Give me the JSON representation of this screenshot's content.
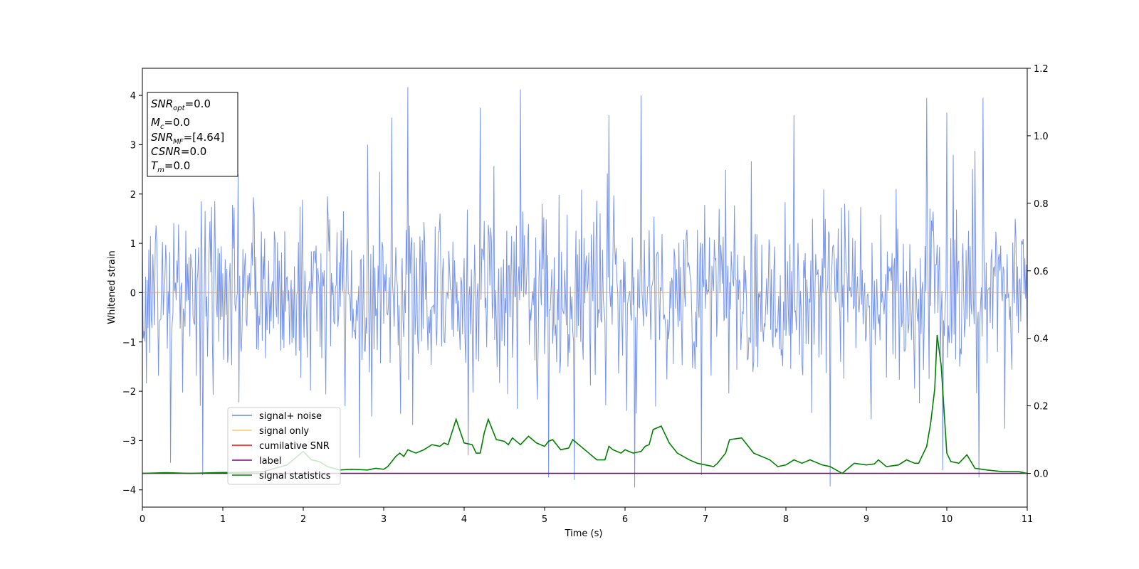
{
  "chart_data": {
    "type": "line",
    "xlabel": "Time (s)",
    "ylabel": "Whitened strain",
    "xlim": [
      0,
      11
    ],
    "ylim_left": [
      -4.35,
      4.55
    ],
    "ylim_right": [
      -0.1,
      1.2
    ],
    "x_ticks": [
      "0",
      "1",
      "2",
      "3",
      "4",
      "5",
      "6",
      "7",
      "8",
      "9",
      "10",
      "11"
    ],
    "y_ticks_left": [
      "−4",
      "−3",
      "−2",
      "−1",
      "0",
      "1",
      "2",
      "3",
      "4"
    ],
    "y_ticks_right": [
      "0.0",
      "0.2",
      "0.4",
      "0.6",
      "0.8",
      "1.0",
      "1.2"
    ],
    "info_box": {
      "snr_opt": {
        "name": "SNR",
        "sub": "opt",
        "value": "=0.0"
      },
      "mc": {
        "name": "M",
        "sub": "c",
        "value": "=0.0"
      },
      "snr_mf": {
        "name": "SNR",
        "sub": "MF",
        "value": "=[4.64]"
      },
      "csnr": {
        "name": "CSNR",
        "value": "=0.0"
      },
      "tm": {
        "name": "T",
        "sub": "m",
        "value": "=0.0"
      }
    },
    "colors": {
      "signal_noise": "#4169e1",
      "signal_only": "#ffa500",
      "cumulative_snr": "#ff0000",
      "label": "#800080",
      "signal_statistics": "#008000"
    },
    "series": [
      {
        "name": "signal+ noise",
        "axis": "left",
        "description_values": {
          "sample_rate_hz": 100,
          "typical_range": [
            -2.5,
            2.8
          ],
          "spike_maxima": [
            [
              3.3,
              4.17
            ],
            [
              4.7,
              4.12
            ],
            [
              6.2,
              4.0
            ],
            [
              10.45,
              3.95
            ],
            [
              3.1,
              3.55
            ],
            [
              4.2,
              3.75
            ],
            [
              5.8,
              3.6
            ],
            [
              6.95,
              3.9
            ],
            [
              9.75,
              3.95
            ],
            [
              8.1,
              3.6
            ],
            [
              10.0,
              3.65
            ]
          ],
          "spike_minima": [
            [
              6.12,
              -3.95
            ],
            [
              8.55,
              -3.93
            ],
            [
              5.37,
              -3.8
            ],
            [
              5.05,
              -3.75
            ],
            [
              4.05,
              -3.3
            ],
            [
              2.7,
              -3.35
            ],
            [
              0.35,
              -3.45
            ],
            [
              0.75,
              -3.7
            ],
            [
              6.95,
              -3.7
            ],
            [
              10.4,
              -3.75
            ],
            [
              9.95,
              -3.6
            ]
          ]
        }
      },
      {
        "name": "signal only",
        "axis": "left",
        "x": [
          0,
          11
        ],
        "y": [
          0,
          0
        ]
      },
      {
        "name": "cumilative SNR",
        "axis": "right",
        "x": [],
        "y": []
      },
      {
        "name": "label",
        "axis": "right",
        "x": [
          0,
          11
        ],
        "y": [
          0,
          0
        ]
      },
      {
        "name": "signal statistics",
        "axis": "right",
        "x": [
          0,
          0.3,
          0.6,
          0.9,
          1.2,
          1.5,
          1.8,
          2.0,
          2.1,
          2.2,
          2.3,
          2.45,
          2.6,
          2.8,
          2.9,
          3.0,
          3.05,
          3.15,
          3.2,
          3.25,
          3.3,
          3.4,
          3.5,
          3.6,
          3.7,
          3.75,
          3.8,
          3.9,
          4.0,
          4.1,
          4.15,
          4.2,
          4.25,
          4.3,
          4.4,
          4.5,
          4.55,
          4.6,
          4.7,
          4.8,
          4.9,
          5.0,
          5.05,
          5.1,
          5.2,
          5.3,
          5.35,
          5.45,
          5.55,
          5.65,
          5.75,
          5.8,
          5.85,
          5.95,
          6.0,
          6.1,
          6.2,
          6.25,
          6.3,
          6.35,
          6.45,
          6.55,
          6.65,
          6.8,
          6.9,
          7.0,
          7.1,
          7.15,
          7.25,
          7.3,
          7.45,
          7.6,
          7.8,
          7.9,
          8.0,
          8.1,
          8.2,
          8.3,
          8.45,
          8.55,
          8.7,
          8.75,
          8.85,
          9.0,
          9.1,
          9.15,
          9.25,
          9.4,
          9.5,
          9.6,
          9.65,
          9.75,
          9.8,
          9.85,
          9.88,
          9.93,
          10.0,
          10.05,
          10.15,
          10.25,
          10.35,
          10.5,
          10.7,
          10.9,
          11.0
        ],
        "y": [
          0.0,
          0.002,
          0.0,
          0.002,
          0.003,
          0.005,
          0.025,
          0.065,
          0.04,
          0.035,
          0.02,
          0.01,
          0.012,
          0.01,
          0.015,
          0.012,
          0.02,
          0.05,
          0.06,
          0.05,
          0.07,
          0.06,
          0.07,
          0.085,
          0.08,
          0.09,
          0.085,
          0.16,
          0.09,
          0.085,
          0.06,
          0.06,
          0.12,
          0.16,
          0.1,
          0.095,
          0.085,
          0.105,
          0.085,
          0.11,
          0.09,
          0.08,
          0.095,
          0.1,
          0.07,
          0.075,
          0.1,
          0.08,
          0.06,
          0.04,
          0.04,
          0.08,
          0.07,
          0.06,
          0.07,
          0.06,
          0.065,
          0.08,
          0.085,
          0.13,
          0.14,
          0.09,
          0.06,
          0.04,
          0.03,
          0.025,
          0.02,
          0.03,
          0.06,
          0.1,
          0.105,
          0.06,
          0.04,
          0.02,
          0.025,
          0.04,
          0.03,
          0.04,
          0.025,
          0.02,
          0.0,
          0.01,
          0.03,
          0.025,
          0.028,
          0.04,
          0.02,
          0.025,
          0.04,
          0.03,
          0.03,
          0.08,
          0.15,
          0.25,
          0.41,
          0.32,
          0.06,
          0.035,
          0.03,
          0.055,
          0.015,
          0.01,
          0.005,
          0.005,
          0.0
        ]
      }
    ],
    "legend": {
      "placement": "lower-left",
      "entries": [
        "signal+ noise",
        "signal only",
        "cumilative SNR",
        "label",
        "signal statistics"
      ]
    }
  }
}
